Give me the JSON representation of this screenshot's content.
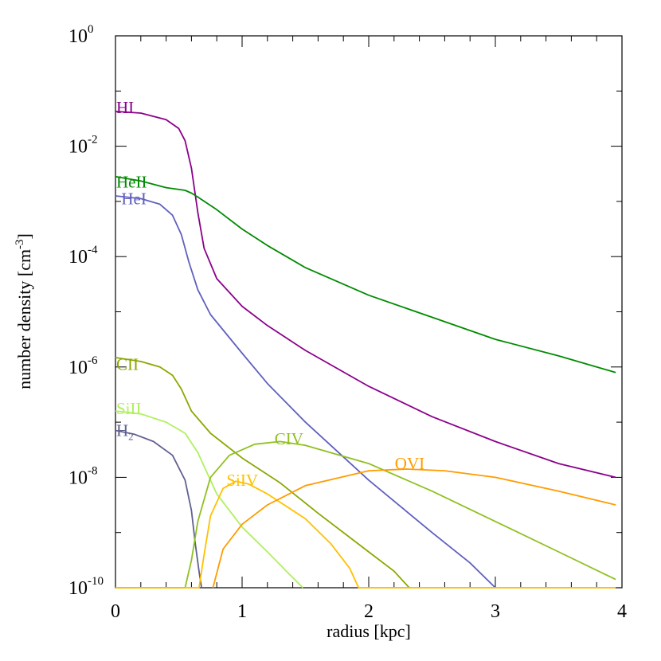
{
  "chart_data": {
    "type": "line",
    "title": "",
    "xlabel": "radius [kpc]",
    "ylabel_base": "number density [cm",
    "ylabel_sup": "-3",
    "ylabel_close": "]",
    "xlim": [
      0,
      4
    ],
    "ylim_log10": [
      -10,
      0
    ],
    "yscale": "log",
    "grid": false,
    "legend": "none",
    "x_ticks": [
      {
        "value": 0,
        "label": "0"
      },
      {
        "value": 1,
        "label": "1"
      },
      {
        "value": 2,
        "label": "2"
      },
      {
        "value": 3,
        "label": "3"
      },
      {
        "value": 4,
        "label": "4"
      }
    ],
    "y_ticks": [
      {
        "exp": 0,
        "base": "10",
        "sup": "0"
      },
      {
        "exp": -2,
        "base": "10",
        "sup": "-2"
      },
      {
        "exp": -4,
        "base": "10",
        "sup": "-4"
      },
      {
        "exp": -6,
        "base": "10",
        "sup": "-6"
      },
      {
        "exp": -8,
        "base": "10",
        "sup": "-8"
      },
      {
        "exp": -10,
        "base": "10",
        "sup": "-10"
      }
    ],
    "series": [
      {
        "name": "HI",
        "sub": "",
        "color": "#8b008b",
        "label_at": [
          0.0,
          -1.3
        ],
        "points": [
          [
            0,
            -1.37
          ],
          [
            0.2,
            -1.4
          ],
          [
            0.4,
            -1.52
          ],
          [
            0.5,
            -1.68
          ],
          [
            0.55,
            -1.9
          ],
          [
            0.6,
            -2.4
          ],
          [
            0.65,
            -3.2
          ],
          [
            0.7,
            -3.85
          ],
          [
            0.8,
            -4.4
          ],
          [
            1.0,
            -4.9
          ],
          [
            1.2,
            -5.25
          ],
          [
            1.5,
            -5.7
          ],
          [
            2.0,
            -6.35
          ],
          [
            2.5,
            -6.9
          ],
          [
            3.0,
            -7.35
          ],
          [
            3.5,
            -7.75
          ],
          [
            3.95,
            -8.0
          ]
        ]
      },
      {
        "name": "HeII",
        "sub": "",
        "color": "#008b00",
        "label_at": [
          0.0,
          -2.65
        ],
        "points": [
          [
            0,
            -2.55
          ],
          [
            0.2,
            -2.63
          ],
          [
            0.4,
            -2.75
          ],
          [
            0.55,
            -2.8
          ],
          [
            0.6,
            -2.85
          ],
          [
            0.65,
            -2.92
          ],
          [
            0.8,
            -3.15
          ],
          [
            1.0,
            -3.5
          ],
          [
            1.2,
            -3.8
          ],
          [
            1.5,
            -4.2
          ],
          [
            2.0,
            -4.7
          ],
          [
            2.5,
            -5.1
          ],
          [
            3.0,
            -5.5
          ],
          [
            3.5,
            -5.8
          ],
          [
            3.95,
            -6.1
          ]
        ]
      },
      {
        "name": "HeI",
        "sub": "",
        "color": "#6060c0",
        "label_at": [
          0.04,
          -2.95
        ],
        "points": [
          [
            0,
            -2.9
          ],
          [
            0.2,
            -2.95
          ],
          [
            0.35,
            -3.05
          ],
          [
            0.45,
            -3.25
          ],
          [
            0.52,
            -3.6
          ],
          [
            0.58,
            -4.1
          ],
          [
            0.65,
            -4.6
          ],
          [
            0.75,
            -5.05
          ],
          [
            1.0,
            -5.75
          ],
          [
            1.2,
            -6.3
          ],
          [
            1.5,
            -7.0
          ],
          [
            2.0,
            -8.05
          ],
          [
            2.5,
            -9.0
          ],
          [
            2.8,
            -9.55
          ],
          [
            3.0,
            -10.0
          ]
        ]
      },
      {
        "name": "CII",
        "sub": "",
        "color": "#8aa800",
        "label_at": [
          0.0,
          -5.95
        ],
        "points": [
          [
            0,
            -5.83
          ],
          [
            0.2,
            -5.9
          ],
          [
            0.35,
            -6.0
          ],
          [
            0.45,
            -6.15
          ],
          [
            0.52,
            -6.4
          ],
          [
            0.6,
            -6.8
          ],
          [
            0.75,
            -7.2
          ],
          [
            1.0,
            -7.65
          ],
          [
            1.3,
            -8.1
          ],
          [
            1.6,
            -8.65
          ],
          [
            2.0,
            -9.35
          ],
          [
            2.2,
            -9.7
          ],
          [
            2.32,
            -10.0
          ]
        ]
      },
      {
        "name": "SiII",
        "sub": "",
        "color": "#b0f060",
        "label_at": [
          0.0,
          -6.75
        ],
        "points": [
          [
            0,
            -6.8
          ],
          [
            0.2,
            -6.85
          ],
          [
            0.4,
            -7.0
          ],
          [
            0.55,
            -7.2
          ],
          [
            0.65,
            -7.55
          ],
          [
            0.7,
            -7.8
          ],
          [
            0.8,
            -8.3
          ],
          [
            1.0,
            -8.9
          ],
          [
            1.2,
            -9.35
          ],
          [
            1.35,
            -9.7
          ],
          [
            1.48,
            -10.0
          ]
        ]
      },
      {
        "name": "H",
        "sub": "2",
        "color": "#606090",
        "label_at": [
          0.0,
          -7.15
        ],
        "points": [
          [
            0,
            -7.15
          ],
          [
            0.15,
            -7.22
          ],
          [
            0.3,
            -7.35
          ],
          [
            0.45,
            -7.6
          ],
          [
            0.55,
            -8.05
          ],
          [
            0.6,
            -8.6
          ],
          [
            0.63,
            -9.2
          ],
          [
            0.66,
            -9.7
          ],
          [
            0.68,
            -10.0
          ]
        ]
      },
      {
        "name": "CIV",
        "sub": "",
        "color": "#90c020",
        "label_at": [
          1.25,
          -7.3
        ],
        "points": [
          [
            0,
            -10.0
          ],
          [
            0.55,
            -10.0
          ],
          [
            0.6,
            -9.5
          ],
          [
            0.65,
            -8.8
          ],
          [
            0.75,
            -8.0
          ],
          [
            0.9,
            -7.6
          ],
          [
            1.1,
            -7.4
          ],
          [
            1.3,
            -7.35
          ],
          [
            1.5,
            -7.42
          ],
          [
            2.0,
            -7.75
          ],
          [
            2.5,
            -8.25
          ],
          [
            3.0,
            -8.8
          ],
          [
            3.5,
            -9.35
          ],
          [
            3.95,
            -9.85
          ]
        ]
      },
      {
        "name": "SiIV",
        "sub": "",
        "color": "#ffc000",
        "label_at": [
          0.87,
          -8.05
        ],
        "points": [
          [
            0,
            -10.0
          ],
          [
            0.66,
            -10.0
          ],
          [
            0.7,
            -9.4
          ],
          [
            0.75,
            -8.7
          ],
          [
            0.85,
            -8.2
          ],
          [
            0.95,
            -8.07
          ],
          [
            1.05,
            -8.12
          ],
          [
            1.2,
            -8.3
          ],
          [
            1.5,
            -8.75
          ],
          [
            1.7,
            -9.2
          ],
          [
            1.85,
            -9.65
          ],
          [
            1.92,
            -10.0
          ],
          [
            3.95,
            -10.0
          ]
        ]
      },
      {
        "name": "OVI",
        "sub": "",
        "color": "#ff9c00",
        "label_at": [
          2.2,
          -7.75
        ],
        "points": [
          [
            0.77,
            -10.0
          ],
          [
            0.85,
            -9.3
          ],
          [
            1.0,
            -8.85
          ],
          [
            1.2,
            -8.5
          ],
          [
            1.5,
            -8.15
          ],
          [
            2.0,
            -7.88
          ],
          [
            2.3,
            -7.85
          ],
          [
            2.6,
            -7.88
          ],
          [
            3.0,
            -8.0
          ],
          [
            3.5,
            -8.25
          ],
          [
            3.95,
            -8.5
          ]
        ]
      }
    ]
  }
}
